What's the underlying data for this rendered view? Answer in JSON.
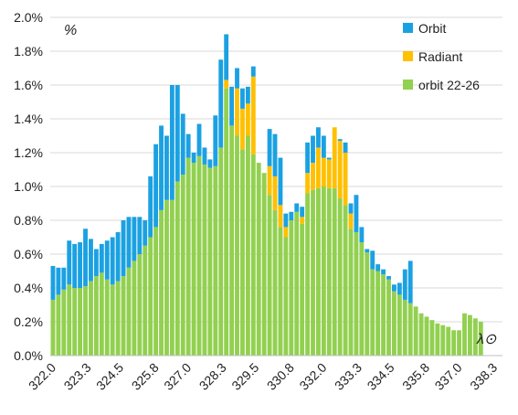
{
  "chart_data": {
    "type": "bar",
    "stacked": true,
    "ylabel": "%",
    "xlabel": "λ⊙",
    "ylim": [
      0,
      2.0
    ],
    "yticks": [
      "0.0%",
      "0.2%",
      "0.4%",
      "0.6%",
      "0.8%",
      "1.0%",
      "1.2%",
      "1.4%",
      "1.6%",
      "1.8%",
      "2.0%"
    ],
    "xlim": [
      321.9,
      338.6
    ],
    "bar_step": 0.2,
    "xticks": [
      "322.0",
      "323.3",
      "324.5",
      "325.8",
      "327.0",
      "328.3",
      "329.5",
      "330.8",
      "332.0",
      "333.3",
      "334.5",
      "335.8",
      "337.0",
      "338.3"
    ],
    "grid": "horizontal",
    "legend_position": "top-right",
    "series": [
      {
        "name": "orbit 22-26",
        "color": "#92d050",
        "values": [
          0.33,
          0.36,
          0.39,
          0.42,
          0.4,
          0.4,
          0.41,
          0.44,
          0.47,
          0.49,
          0.45,
          0.42,
          0.44,
          0.47,
          0.52,
          0.56,
          0.6,
          0.65,
          0.7,
          0.76,
          0.86,
          0.92,
          0.92,
          1.03,
          1.07,
          1.17,
          1.14,
          1.18,
          1.13,
          1.11,
          1.12,
          1.23,
          1.58,
          1.36,
          1.3,
          1.22,
          1.3,
          1.19,
          1.14,
          1.08,
          0.95,
          0.86,
          0.76,
          0.7,
          0.8,
          0.85,
          0.78,
          0.96,
          0.98,
          0.99,
          1.0,
          0.99,
          0.99,
          0.93,
          0.89,
          0.75,
          0.73,
          0.67,
          0.61,
          0.51,
          0.5,
          0.48,
          0.45,
          0.38,
          0.36,
          0.33,
          0.31,
          0.29,
          0.25,
          0.23,
          0.21,
          0.19,
          0.18,
          0.17,
          0.15,
          0.15,
          0.25,
          0.24,
          0.22,
          0.2
        ]
      },
      {
        "name": "Radiant",
        "color": "#ffc000",
        "values": [
          0,
          0,
          0,
          0,
          0,
          0,
          0,
          0,
          0,
          0,
          0,
          0,
          0,
          0,
          0,
          0,
          0,
          0,
          0,
          0,
          0,
          0,
          0,
          0,
          0,
          0,
          0,
          0,
          0,
          0,
          0,
          0,
          0.05,
          0,
          0.28,
          0.24,
          0.19,
          0.46,
          0,
          0,
          0.17,
          0.2,
          0.13,
          0.06,
          0,
          0,
          0.04,
          0.12,
          0.16,
          0.24,
          0.17,
          0.17,
          0.36,
          0.34,
          0.31,
          0.09,
          0,
          0,
          0,
          0,
          0,
          0,
          0,
          0,
          0,
          0,
          0,
          0,
          0,
          0,
          0,
          0,
          0,
          0,
          0,
          0,
          0,
          0,
          0,
          0
        ]
      },
      {
        "name": "Orbit",
        "color": "#1ba1e2",
        "values": [
          0.2,
          0.16,
          0.13,
          0.26,
          0.26,
          0.27,
          0.34,
          0.25,
          0.16,
          0.17,
          0.23,
          0.28,
          0.29,
          0.33,
          0.3,
          0.26,
          0.22,
          0.15,
          0.36,
          0.49,
          0.5,
          0.38,
          0.68,
          0.57,
          0.36,
          0.14,
          0.06,
          0.19,
          0.1,
          0.05,
          0.3,
          0.52,
          0.27,
          0.23,
          0.12,
          0.12,
          0.1,
          0.06,
          0,
          0,
          0.22,
          0.25,
          0.28,
          0.08,
          0.05,
          0.05,
          0.06,
          0.18,
          0.16,
          0.12,
          0.13,
          0.01,
          0,
          0.01,
          0.06,
          0.06,
          0.22,
          0.09,
          0.02,
          0.11,
          0.04,
          0.03,
          0.02,
          0.04,
          0.07,
          0.18,
          0.25,
          0,
          0,
          0,
          0,
          0,
          0,
          0,
          0,
          0,
          0,
          0,
          0,
          0
        ]
      }
    ]
  }
}
